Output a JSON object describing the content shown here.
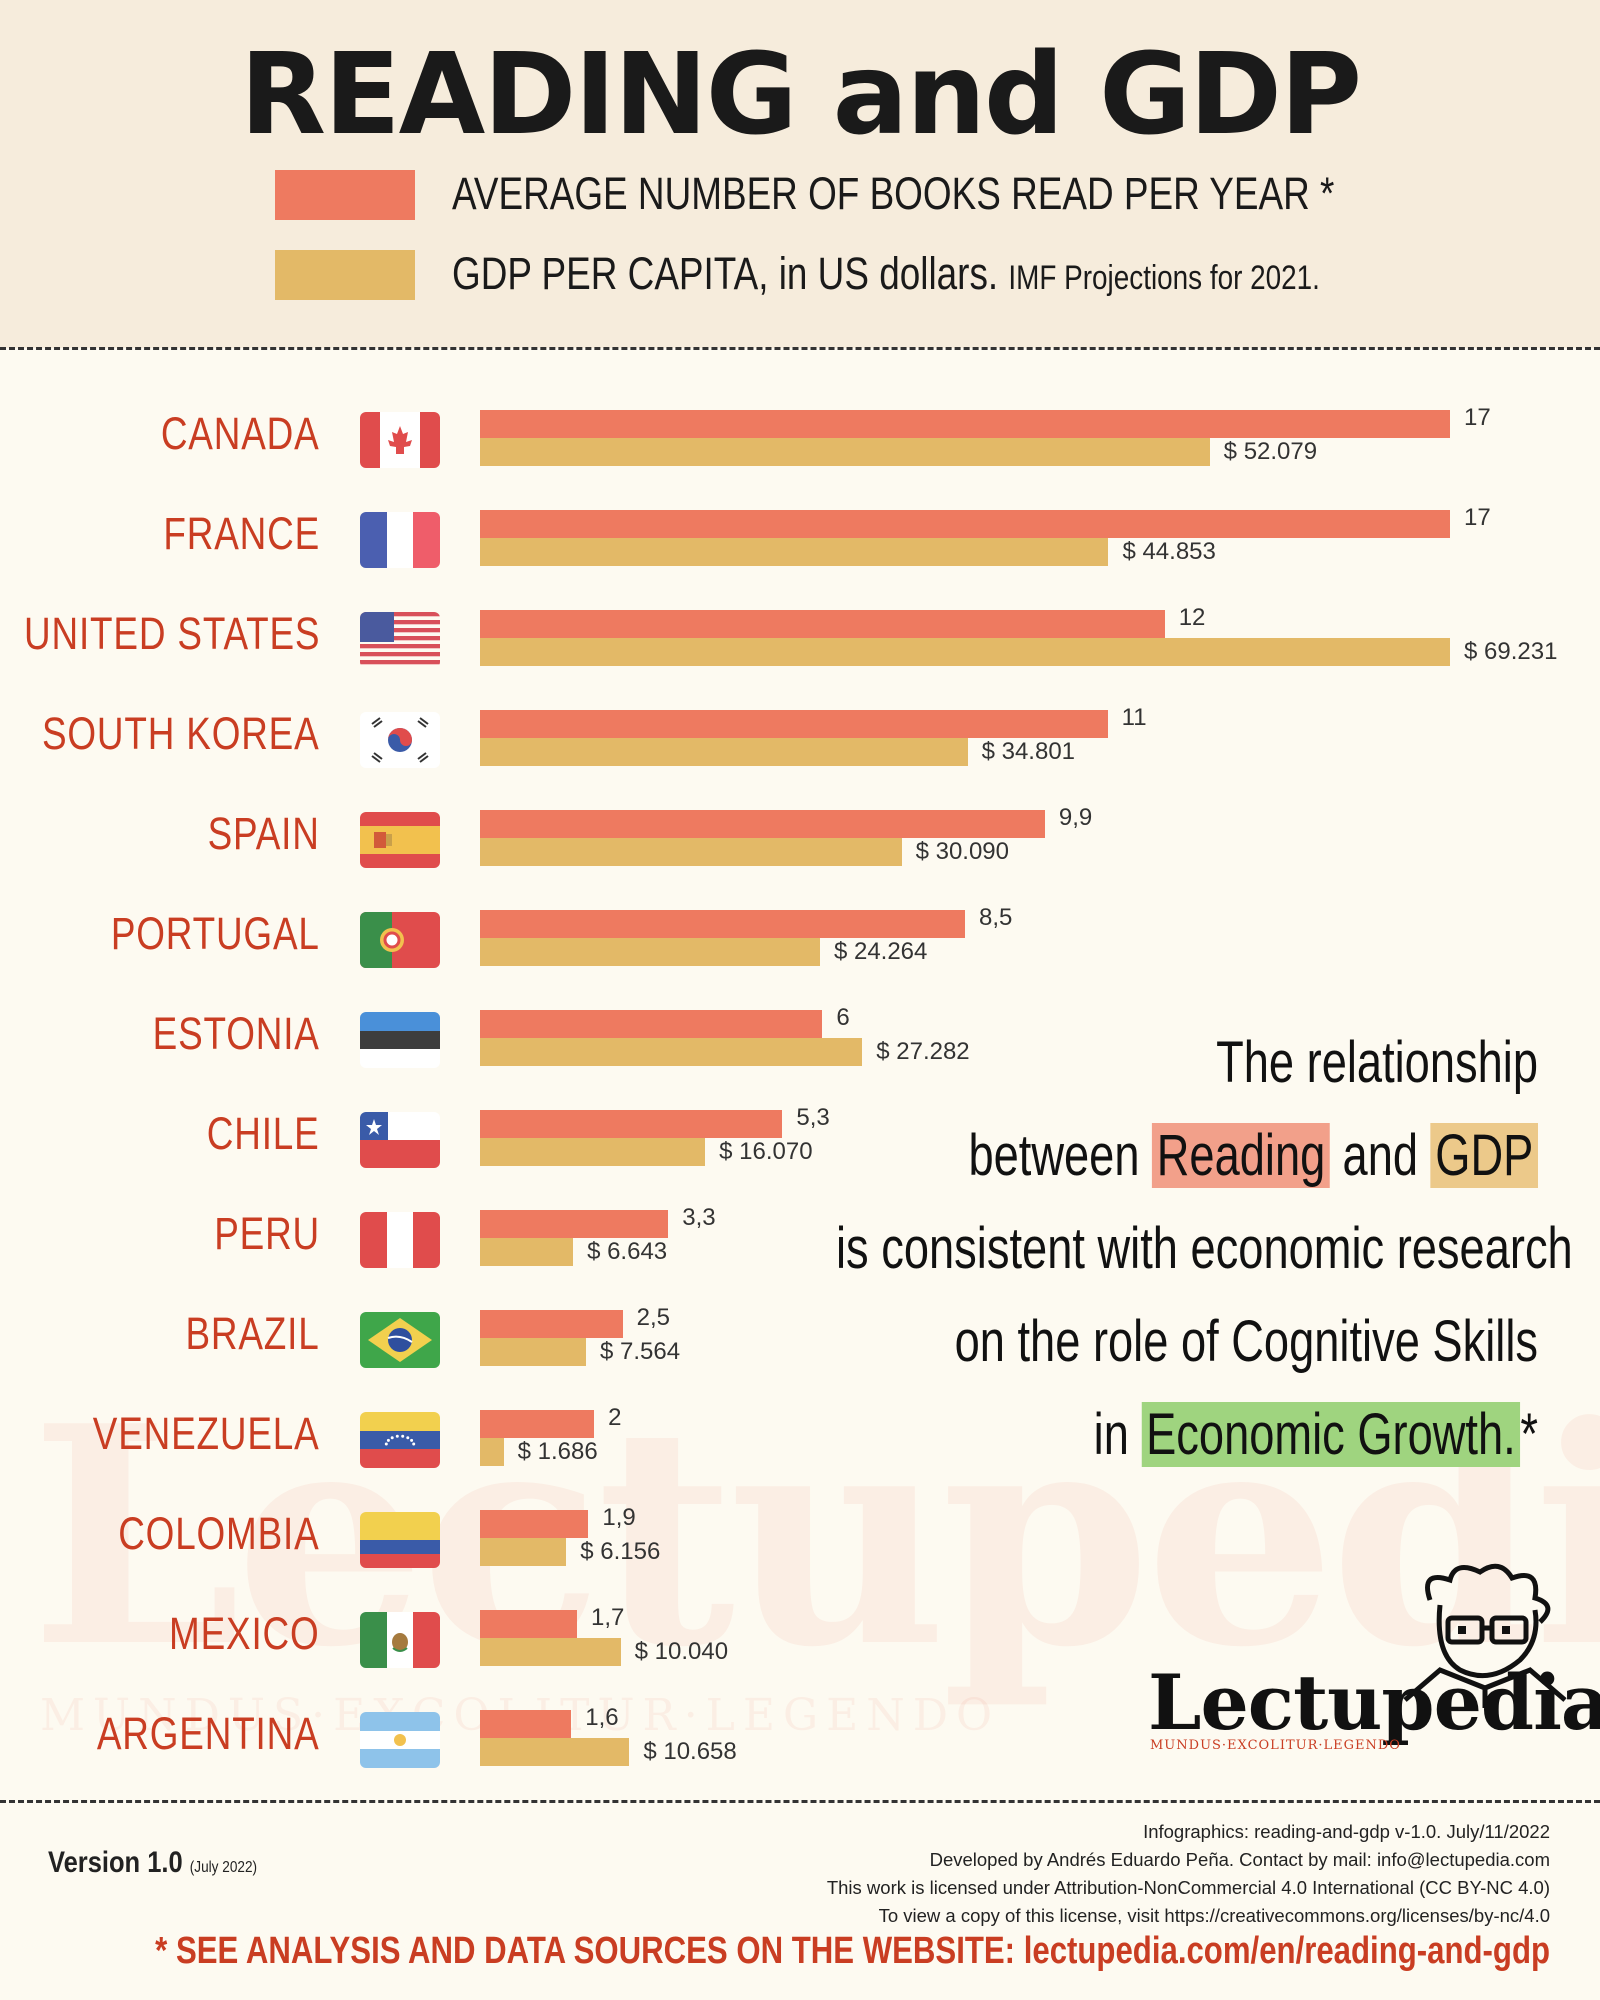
{
  "header": {
    "title": "READING and GDP",
    "legend_books": "AVERAGE NUMBER OF BOOKS READ PER YEAR *",
    "legend_gdp_main": "GDP PER CAPITA, in US dollars.",
    "legend_gdp_note": "IMF Projections for 2021.",
    "books_color": "#ee7a60",
    "gdp_color": "#e3b967"
  },
  "chart_data": {
    "type": "bar",
    "orientation": "horizontal",
    "title": "READING and GDP",
    "categories": [
      "CANADA",
      "FRANCE",
      "UNITED STATES",
      "SOUTH KOREA",
      "SPAIN",
      "PORTUGAL",
      "ESTONIA",
      "CHILE",
      "PERU",
      "BRAZIL",
      "VENEZUELA",
      "COLOMBIA",
      "MEXICO",
      "ARGENTINA"
    ],
    "series": [
      {
        "name": "AVERAGE NUMBER OF BOOKS READ PER YEAR *",
        "values": [
          17,
          17,
          12,
          11,
          9.9,
          8.5,
          6,
          5.3,
          3.3,
          2.5,
          2,
          1.9,
          1.7,
          1.6
        ],
        "labels": [
          "17",
          "17",
          "12",
          "11",
          "9,9",
          "8,5",
          "6",
          "5,3",
          "3,3",
          "2,5",
          "2",
          "1,9",
          "1,7",
          "1,6"
        ],
        "color": "#ee7a60"
      },
      {
        "name": "GDP PER CAPITA, in US dollars. IMF Projections for 2021.",
        "values": [
          52079,
          44853,
          69231,
          34801,
          30090,
          24264,
          27282,
          16070,
          6643,
          7564,
          1686,
          6156,
          10040,
          10658
        ],
        "labels": [
          "$ 52.079",
          "$ 44.853",
          "$ 69.231",
          "$ 34.801",
          "$ 30.090",
          "$ 24.264",
          "$ 27.282",
          "$ 16.070",
          "$ 6.643",
          "$ 7.564",
          "$ 1.686",
          "$ 6.156",
          "$ 10.040",
          "$ 10.658"
        ],
        "color": "#e3b967"
      }
    ],
    "books_max": 17,
    "gdp_max": 69231
  },
  "flags": [
    "canada-flag-icon",
    "france-flag-icon",
    "united-states-flag-icon",
    "south-korea-flag-icon",
    "spain-flag-icon",
    "portugal-flag-icon",
    "estonia-flag-icon",
    "chile-flag-icon",
    "peru-flag-icon",
    "brazil-flag-icon",
    "venezuela-flag-icon",
    "colombia-flag-icon",
    "mexico-flag-icon",
    "argentina-flag-icon"
  ],
  "quote": {
    "line1": "The relationship",
    "line2_a": "between",
    "line2_reading": "Reading",
    "line2_b": "and",
    "line2_gdp": "GDP",
    "line3": "is consistent with economic research",
    "line4": "on the role of Cognitive Skills",
    "line5_a": "in",
    "line5_eco": "Economic Growth.",
    "line5_star": "*"
  },
  "brand": {
    "name": "Lectupedia",
    "motto": "MUNDUS·EXCOLITUR·LEGENDO"
  },
  "footer": {
    "version": "Version 1.0",
    "version_date": "(July 2022)",
    "info1": "Infographics: reading-and-gdp v-1.0. July/11/2022",
    "info2": "Developed by Andrés Eduardo Peña. Contact by mail: info@lectupedia.com",
    "info3": "This work is licensed under Attribution-NonCommercial 4.0 International (CC BY-NC 4.0)",
    "info4": "To view a copy of this license, visit https://creativecommons.org/licenses/by-nc/4.0",
    "see_more": "* SEE ANALYSIS AND DATA SOURCES ON THE WEBSITE:  lectupedia.com/en/reading-and-gdp"
  }
}
